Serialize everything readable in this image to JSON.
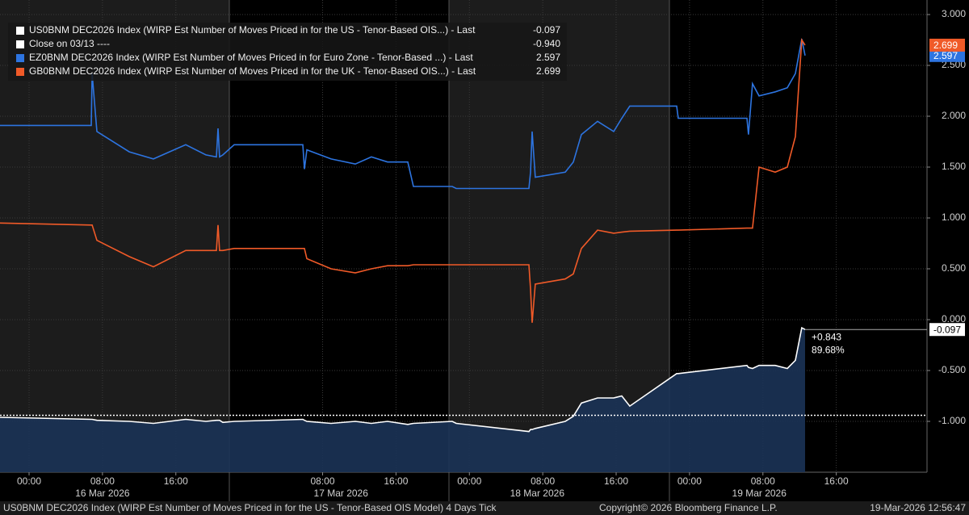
{
  "chart_data": {
    "type": "line",
    "x": [
      -3.17,
      6.78,
      6.87,
      7.39,
      10.92,
      13.56,
      17.08,
      19.28,
      20.42,
      20.6,
      20.77,
      21.13,
      22.36,
      29.84,
      30.02,
      30.28,
      32.92,
      35.56,
      37.32,
      39.08,
      41.29,
      41.9,
      46.13,
      46.57,
      54.49,
      54.67,
      54.84,
      55.19,
      58.45,
      59.33,
      60.21,
      61.97,
      63.73,
      64.61,
      65.49,
      70.6,
      70.77,
      78.26,
      78.43,
      78.87,
      79.58,
      81.34,
      82.66,
      83.54,
      84.24,
      84.6
    ],
    "series": [
      {
        "name": "US0BNM DEC2026 Index (WIRP Est Number of Moves Priced in for the US - Tenor-Based OIS...) - Last",
        "color": "#ffffff",
        "area_color": "#1b3356",
        "last_label": "-0.097",
        "values": [
          -0.96,
          -0.98,
          -0.98,
          -0.99,
          -1.0,
          -1.02,
          -0.98,
          -1.0,
          -0.99,
          -0.99,
          -0.99,
          -1.01,
          -1.0,
          -0.98,
          -0.99,
          -1.0,
          -1.02,
          -1.0,
          -1.02,
          -1.0,
          -1.03,
          -1.02,
          -1.0,
          -1.02,
          -1.1,
          -1.08,
          -1.08,
          -1.07,
          -1.0,
          -0.95,
          -0.82,
          -0.77,
          -0.77,
          -0.75,
          -0.85,
          -0.53,
          -0.53,
          -0.45,
          -0.47,
          -0.48,
          -0.45,
          -0.45,
          -0.48,
          -0.4,
          -0.08,
          -0.097
        ]
      },
      {
        "name": "EZ0BNM DEC2026 Index (WIRP Est Number of Moves Priced in for Euro Zone - Tenor-Based ...) - Last",
        "color": "#2d74e0",
        "last_label": "2.597",
        "values": [
          1.91,
          1.91,
          2.42,
          1.85,
          1.65,
          1.58,
          1.72,
          1.62,
          1.6,
          1.88,
          1.6,
          1.62,
          1.72,
          1.72,
          1.48,
          1.67,
          1.58,
          1.53,
          1.6,
          1.55,
          1.55,
          1.31,
          1.31,
          1.29,
          1.29,
          1.45,
          1.85,
          1.4,
          1.45,
          1.55,
          1.82,
          1.95,
          1.85,
          1.98,
          2.1,
          2.1,
          1.98,
          1.98,
          1.82,
          2.32,
          2.2,
          2.24,
          2.28,
          2.42,
          2.76,
          2.597
        ]
      },
      {
        "name": "GB0BNM DEC2026 Index (WIRP Est Number of Moves Priced in for the UK - Tenor-Based OIS...) - Last",
        "color": "#f05a28",
        "last_label": "2.699",
        "values": [
          0.95,
          0.93,
          0.93,
          0.78,
          0.62,
          0.52,
          0.68,
          0.68,
          0.68,
          0.93,
          0.68,
          0.68,
          0.7,
          0.7,
          0.7,
          0.6,
          0.5,
          0.46,
          0.5,
          0.53,
          0.53,
          0.54,
          0.54,
          0.54,
          0.54,
          0.3,
          -0.03,
          0.35,
          0.4,
          0.45,
          0.7,
          0.88,
          0.85,
          0.86,
          0.87,
          0.88,
          0.88,
          0.9,
          0.9,
          0.9,
          1.5,
          1.45,
          1.5,
          1.8,
          2.75,
          2.699
        ]
      }
    ],
    "reference_line": {
      "label": "Close on 03/13 ----",
      "value": -0.94,
      "value_label": "-0.940",
      "color": "#ffffff"
    },
    "annotations": [
      "+0.843",
      "89.68%"
    ],
    "xlim": [
      -3.17,
      97.89
    ],
    "ylim": [
      -1.5,
      3.143
    ],
    "xticks": [
      {
        "value": 0,
        "label": "00:00"
      },
      {
        "value": 8,
        "label": "08:00"
      },
      {
        "value": 16,
        "label": "16:00"
      },
      {
        "value": 32,
        "label": "08:00"
      },
      {
        "value": 40,
        "label": "16:00"
      },
      {
        "value": 48,
        "label": "00:00"
      },
      {
        "value": 56,
        "label": "08:00"
      },
      {
        "value": 64,
        "label": "16:00"
      },
      {
        "value": 72,
        "label": "00:00"
      },
      {
        "value": 80,
        "label": "08:00"
      },
      {
        "value": 88,
        "label": "16:00"
      }
    ],
    "day_labels": [
      {
        "value": 8,
        "label": "16 Mar 2026"
      },
      {
        "value": 34,
        "label": "17 Mar 2026"
      },
      {
        "value": 55.4,
        "label": "18 Mar 2026"
      },
      {
        "value": 79.6,
        "label": "19 Mar 2026"
      }
    ],
    "yticks": [
      {
        "value": 3,
        "label": "3.000"
      },
      {
        "value": 2.5,
        "label": "2.500"
      },
      {
        "value": 2,
        "label": "2.000"
      },
      {
        "value": 1.5,
        "label": "1.500"
      },
      {
        "value": 1,
        "label": "1.000"
      },
      {
        "value": 0.5,
        "label": "0.500"
      },
      {
        "value": 0,
        "label": "0.000"
      },
      {
        "value": -0.5,
        "label": "-0.500"
      },
      {
        "value": -1,
        "label": "-1.000"
      }
    ],
    "grid": true,
    "footer": {
      "description": "US0BNM DEC2026 Index (WIRP Est Number of Moves Priced in for the US - Tenor-Based OIS Model) 4 Days Tick",
      "copyright": "Copyright© 2026 Bloomberg Finance L.P.",
      "timestamp": "19-Mar-2026 12:56:47"
    }
  }
}
